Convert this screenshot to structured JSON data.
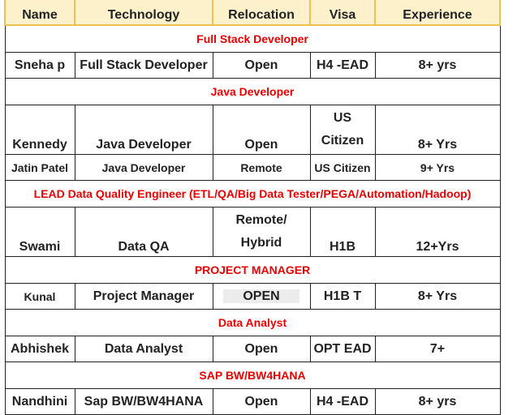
{
  "headers": {
    "name": "Name",
    "technology": "Technology",
    "relocation": "Relocation",
    "visa": "Visa",
    "experience": "Experience"
  },
  "sections": [
    {
      "title": "Full Stack Developer",
      "rows": [
        {
          "name": "Sneha p",
          "technology": "Full Stack Developer",
          "relocation": "Open",
          "visa": "H4 -EAD",
          "experience": "8+ yrs"
        }
      ]
    },
    {
      "title": "Java Developer",
      "rows": [
        {
          "name": "Kennedy",
          "technology": "Java Developer",
          "relocation": "Open",
          "visa_line1": "US",
          "visa_line2": "Citizen",
          "experience": "8+ Yrs"
        },
        {
          "name": "Jatin Patel",
          "technology": "Java Developer",
          "relocation": "Remote",
          "visa": "US Citizen",
          "experience": "9+ Yrs"
        }
      ]
    },
    {
      "title": "LEAD Data Quality Engineer (ETL/QA/Big Data Tester/PEGA/Automation/Hadoop)",
      "rows": [
        {
          "name": "Swami",
          "technology": "Data QA",
          "relocation_line1": "Remote/",
          "relocation_line2": "Hybrid",
          "visa": "H1B",
          "experience": "12+Yrs"
        }
      ]
    },
    {
      "title": "PROJECT MANAGER",
      "rows": [
        {
          "name": "Kunal",
          "technology": "Project Manager",
          "relocation": "OPEN",
          "visa": "H1B T",
          "experience": "8+ Yrs"
        }
      ]
    },
    {
      "title": "Data Analyst",
      "rows": [
        {
          "name": "Abhishek",
          "technology": "Data Analyst",
          "relocation": "Open",
          "visa": "OPT EAD",
          "experience": "7+"
        }
      ]
    },
    {
      "title": "SAP BW/BW4HANA",
      "rows": [
        {
          "name": "Nandhini",
          "technology": "Sap BW/BW4HANA",
          "relocation": "Open",
          "visa": "H4 -EAD",
          "experience": "8+ yrs"
        }
      ]
    }
  ]
}
